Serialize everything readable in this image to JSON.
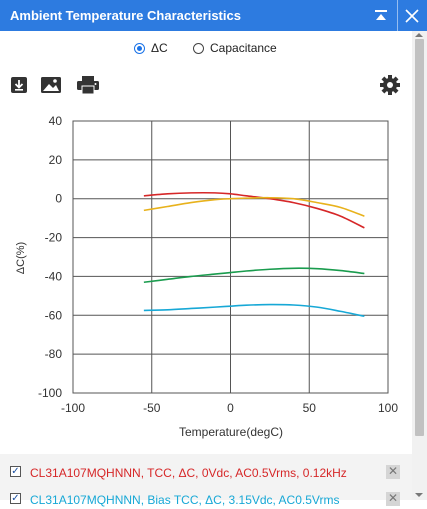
{
  "window": {
    "title": "Ambient Temperature Characteristics"
  },
  "view_options": {
    "options": [
      {
        "label": "ΔC",
        "selected": true
      },
      {
        "label": "Capacitance",
        "selected": false
      }
    ]
  },
  "toolbar": {
    "icons": [
      "download-icon",
      "image-icon",
      "print-icon",
      "gear-icon"
    ]
  },
  "legend": {
    "items": [
      {
        "label": "CL31A107MQHNNN, TCC, ΔC, 0Vdc, AC0.5Vrms, 0.12kHz",
        "checked": true,
        "color": "#d62728"
      },
      {
        "label": "CL31A107MQHNNN, Bias TCC, ΔC, 3.15Vdc, AC0.5Vrms",
        "checked": true,
        "color": "#17a8d6"
      }
    ]
  },
  "chart_data": {
    "type": "line",
    "title": "",
    "xlabel": "Temperature(degC)",
    "ylabel": "ΔC(%)",
    "xlim": [
      -100,
      100
    ],
    "ylim": [
      -100,
      40
    ],
    "xticks": [
      -100,
      -50,
      0,
      50,
      100
    ],
    "yticks": [
      40,
      20,
      0,
      -20,
      -40,
      -60,
      -80,
      -100
    ],
    "grid": true,
    "series": [
      {
        "color": "#d62728",
        "x": [
          -55,
          -40,
          -25,
          -10,
          0,
          10,
          25,
          40,
          55,
          70,
          85
        ],
        "y": [
          1.5,
          2.5,
          3,
          3,
          2.5,
          1.5,
          0,
          -2,
          -5,
          -9,
          -15
        ]
      },
      {
        "color": "#e8b21c",
        "x": [
          -55,
          -40,
          -25,
          -10,
          0,
          10,
          25,
          40,
          55,
          70,
          85
        ],
        "y": [
          -6,
          -4,
          -2,
          -0.5,
          0,
          0.3,
          0.5,
          0,
          -2,
          -4.5,
          -9
        ]
      },
      {
        "color": "#1a9c4e",
        "x": [
          -55,
          -40,
          -25,
          -10,
          0,
          10,
          25,
          40,
          55,
          70,
          85
        ],
        "y": [
          -43,
          -41.5,
          -40,
          -38.8,
          -38,
          -37.2,
          -36.3,
          -35.8,
          -36,
          -37,
          -38.5
        ]
      },
      {
        "color": "#17a8d6",
        "x": [
          -55,
          -40,
          -25,
          -10,
          0,
          10,
          25,
          40,
          55,
          70,
          85
        ],
        "y": [
          -57.5,
          -57.2,
          -56.5,
          -55.8,
          -55.3,
          -54.8,
          -54.5,
          -54.7,
          -55.8,
          -58,
          -60.5
        ]
      }
    ]
  }
}
